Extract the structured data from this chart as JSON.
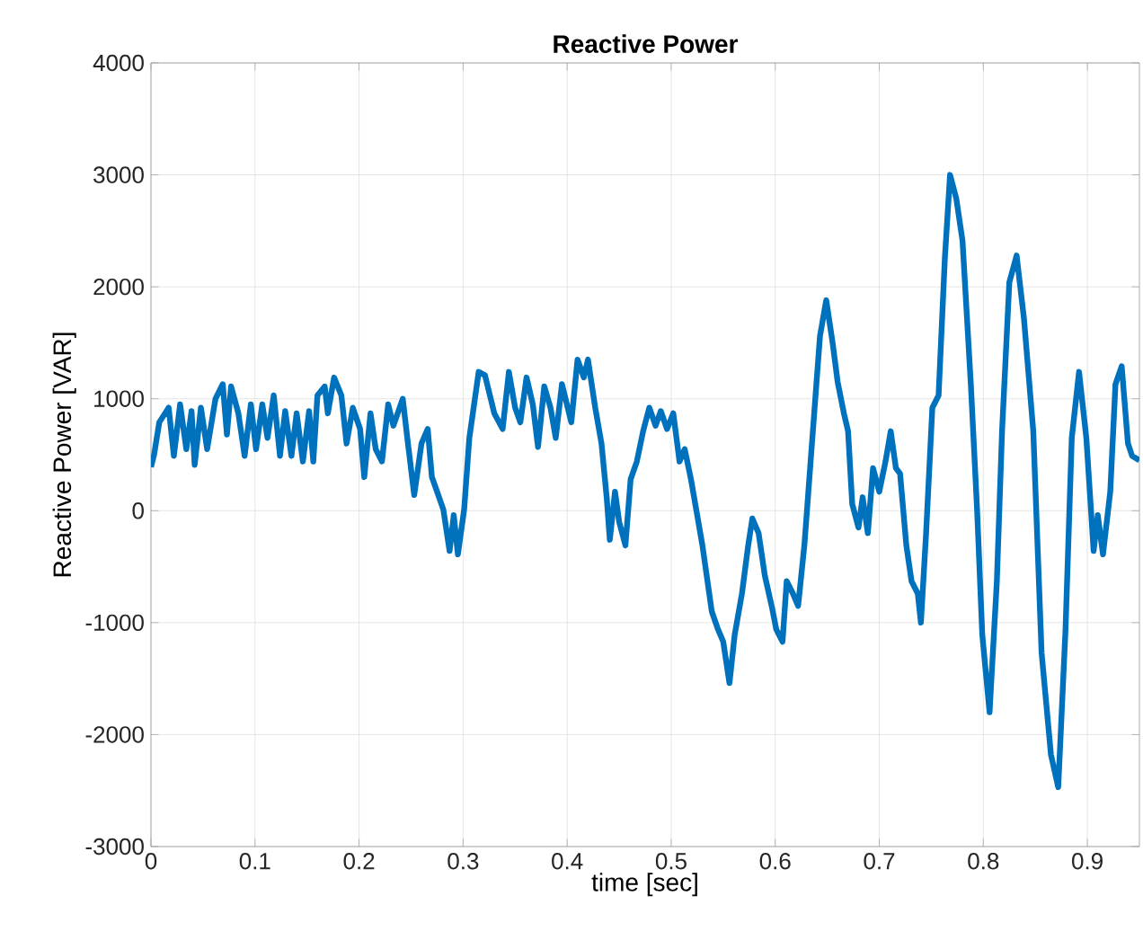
{
  "chart_data": {
    "type": "line",
    "title": "Reactive Power",
    "xlabel": "time [sec]",
    "ylabel": "Reactive Power [VAR]",
    "xlim": [
      0,
      0.95
    ],
    "ylim": [
      -3000,
      4000
    ],
    "xticks": [
      0,
      0.1,
      0.2,
      0.3,
      0.4,
      0.5,
      0.6,
      0.7,
      0.8,
      0.9
    ],
    "yticks": [
      -3000,
      -2000,
      -1000,
      0,
      1000,
      2000,
      3000,
      4000
    ],
    "grid": true,
    "marker": "none",
    "line_style": "solid",
    "series": [
      {
        "color": "#0072bd",
        "x": [
          0,
          0.003,
          0.008,
          0.017,
          0.022,
          0.028,
          0.034,
          0.039,
          0.042,
          0.048,
          0.054,
          0.062,
          0.069,
          0.073,
          0.077,
          0.084,
          0.09,
          0.096,
          0.101,
          0.107,
          0.112,
          0.118,
          0.124,
          0.129,
          0.135,
          0.14,
          0.146,
          0.152,
          0.156,
          0.16,
          0.167,
          0.17,
          0.176,
          0.183,
          0.188,
          0.194,
          0.201,
          0.205,
          0.211,
          0.216,
          0.222,
          0.228,
          0.233,
          0.242,
          0.247,
          0.253,
          0.26,
          0.266,
          0.27,
          0.275,
          0.281,
          0.287,
          0.291,
          0.295,
          0.301,
          0.306,
          0.315,
          0.321,
          0.33,
          0.338,
          0.344,
          0.35,
          0.355,
          0.361,
          0.367,
          0.372,
          0.378,
          0.384,
          0.389,
          0.395,
          0.404,
          0.41,
          0.416,
          0.42,
          0.427,
          0.433,
          0.438,
          0.441,
          0.446,
          0.45,
          0.456,
          0.461,
          0.467,
          0.473,
          0.479,
          0.485,
          0.49,
          0.496,
          0.502,
          0.508,
          0.513,
          0.519,
          0.525,
          0.53,
          0.539,
          0.545,
          0.55,
          0.556,
          0.561,
          0.568,
          0.574,
          0.578,
          0.584,
          0.59,
          0.597,
          0.601,
          0.607,
          0.611,
          0.617,
          0.622,
          0.628,
          0.634,
          0.643,
          0.649,
          0.655,
          0.66,
          0.666,
          0.67,
          0.674,
          0.68,
          0.684,
          0.689,
          0.694,
          0.7,
          0.706,
          0.711,
          0.716,
          0.72,
          0.726,
          0.731,
          0.737,
          0.74,
          0.745,
          0.751,
          0.757,
          0.763,
          0.768,
          0.774,
          0.78,
          0.788,
          0.794,
          0.799,
          0.806,
          0.813,
          0.818,
          0.825,
          0.832,
          0.839,
          0.848,
          0.856,
          0.865,
          0.872,
          0.879,
          0.885,
          0.892,
          0.899,
          0.906,
          0.91,
          0.915,
          0.922,
          0.927,
          0.933,
          0.939,
          0.943,
          0.95
        ],
        "values": [
          390,
          500,
          790,
          920,
          490,
          950,
          550,
          890,
          410,
          920,
          550,
          1000,
          1130,
          680,
          1110,
          870,
          490,
          950,
          550,
          950,
          650,
          1030,
          490,
          890,
          490,
          870,
          440,
          890,
          440,
          1030,
          1110,
          870,
          1190,
          1030,
          600,
          920,
          730,
          300,
          870,
          550,
          440,
          950,
          760,
          1000,
          600,
          140,
          600,
          730,
          300,
          170,
          10,
          -360,
          -40,
          -390,
          10,
          650,
          1240,
          1210,
          870,
          730,
          1240,
          920,
          790,
          1190,
          950,
          570,
          1110,
          920,
          650,
          1130,
          790,
          1350,
          1190,
          1350,
          920,
          600,
          120,
          -260,
          170,
          -100,
          -310,
          280,
          440,
          710,
          920,
          760,
          890,
          730,
          870,
          440,
          550,
          280,
          -40,
          -310,
          -900,
          -1060,
          -1170,
          -1540,
          -1110,
          -740,
          -310,
          -70,
          -200,
          -580,
          -870,
          -1060,
          -1170,
          -630,
          -740,
          -850,
          -310,
          440,
          1560,
          1880,
          1510,
          1150,
          870,
          710,
          60,
          -150,
          120,
          -200,
          380,
          170,
          440,
          710,
          380,
          330,
          -310,
          -630,
          -740,
          -1000,
          -200,
          920,
          1030,
          2250,
          3000,
          2790,
          2410,
          1130,
          10,
          -1110,
          -1800,
          -630,
          710,
          2040,
          2280,
          1720,
          710,
          -1270,
          -2180,
          -2470,
          -1060,
          650,
          1240,
          650,
          -360,
          -40,
          -390,
          170,
          1130,
          1290,
          600,
          490,
          450
        ]
      }
    ]
  }
}
